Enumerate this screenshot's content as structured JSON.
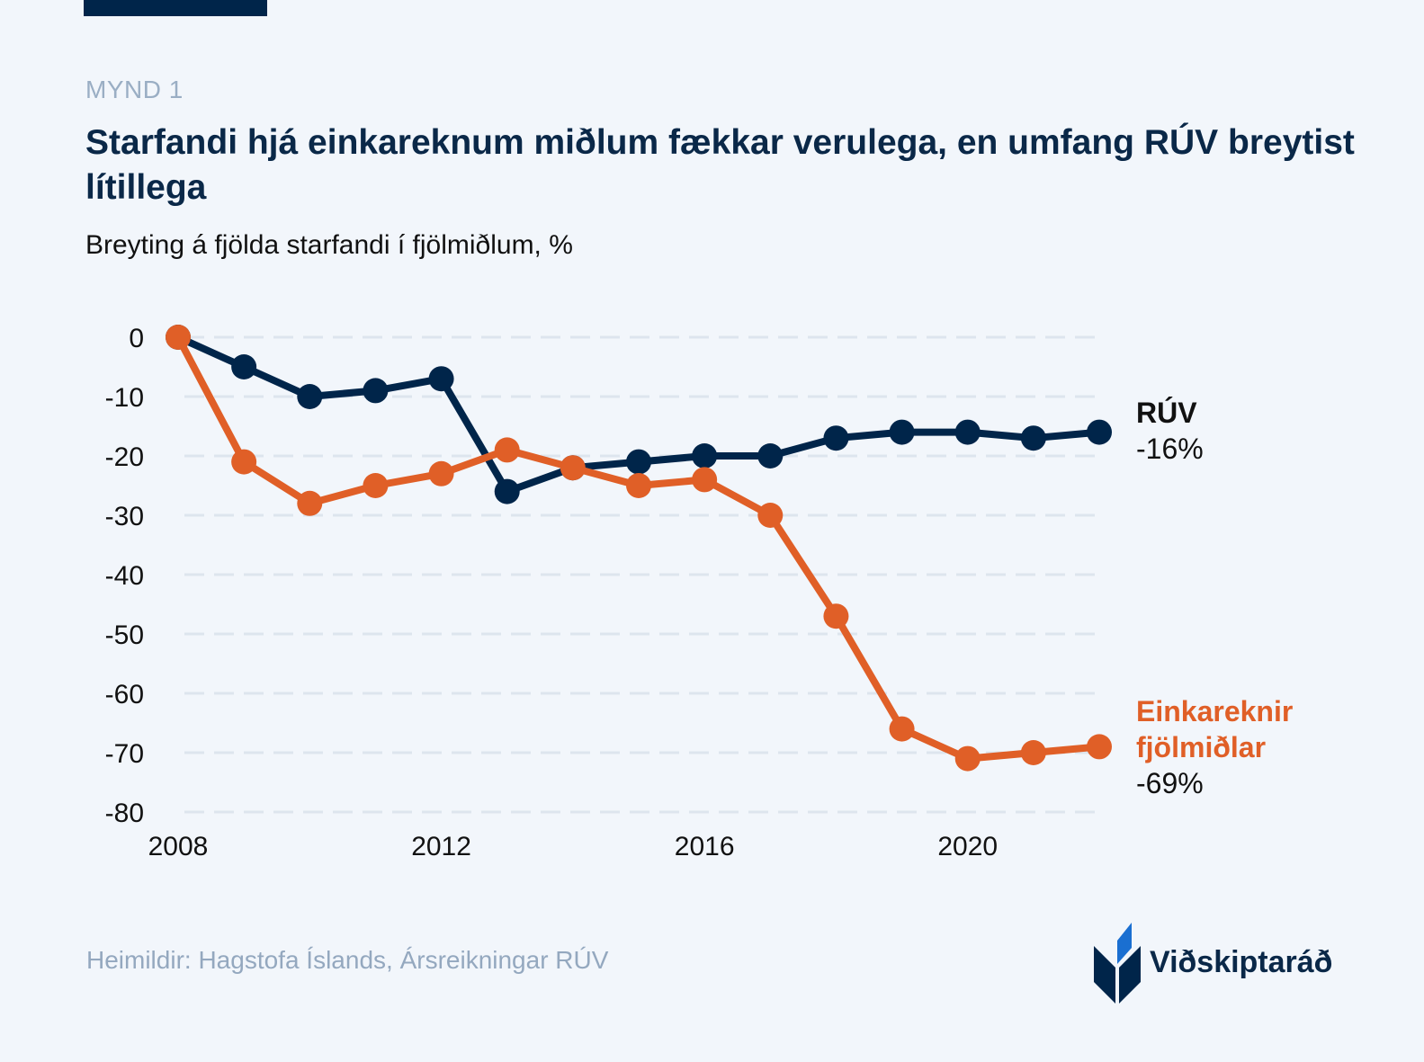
{
  "header": {
    "kicker": "MYND 1",
    "title": "Starfandi hjá einkareknum miðlum fækkar verulega, en umfang RÚV breytist lítillega",
    "subtitle": "Breyting á fjölda starfandi í fjölmiðlum, %"
  },
  "footer": {
    "source": "Heimildir: Hagstofa Íslands, Ársreikningar RÚV",
    "logo_text": "Viðskiptaráð",
    "logo_icon": "vidskiptarad-leaf-logo-icon"
  },
  "colors": {
    "ruv": "#00254a",
    "private": "#e05f27",
    "grid": "#dde5ee",
    "logo_accent": "#1a6fd1"
  },
  "chart_data": {
    "type": "line",
    "title": "Starfandi hjá einkareknum miðlum fækkar verulega, en umfang RÚV breytist lítillega",
    "subtitle": "Breyting á fjölda starfandi í fjölmiðlum, %",
    "xlabel": "",
    "ylabel": "",
    "x": [
      2008,
      2009,
      2010,
      2011,
      2012,
      2013,
      2014,
      2015,
      2016,
      2017,
      2018,
      2019,
      2020,
      2021,
      2022
    ],
    "x_ticks": [
      "2008",
      "2012",
      "2016",
      "2020"
    ],
    "x_tick_values": [
      2008,
      2012,
      2016,
      2020
    ],
    "y_ticks": [
      "0",
      "-10",
      "-20",
      "-30",
      "-40",
      "-50",
      "-60",
      "-70",
      "-80"
    ],
    "y_tick_values": [
      0,
      -10,
      -20,
      -30,
      -40,
      -50,
      -60,
      -70,
      -80
    ],
    "ylim": [
      -80,
      0
    ],
    "xlim": [
      2008,
      2022
    ],
    "grid": "horizontal dashed",
    "legend": "inline-right",
    "series": [
      {
        "name": "RÚV",
        "end_label": "-16%",
        "color": "#00254a",
        "values": [
          0,
          -5,
          -10,
          -9,
          -7,
          -26,
          -22,
          -21,
          -20,
          -20,
          -17,
          -16,
          -16,
          -17,
          -16
        ]
      },
      {
        "name": "Einkareknir fjölmiðlar",
        "name_lines": [
          "Einkareknir",
          "fjölmiðlar"
        ],
        "end_label": "-69%",
        "color": "#e05f27",
        "values": [
          0,
          -21,
          -28,
          -25,
          -23,
          -19,
          -22,
          -25,
          -24,
          -30,
          -47,
          -66,
          -71,
          -70,
          -69
        ]
      }
    ]
  }
}
